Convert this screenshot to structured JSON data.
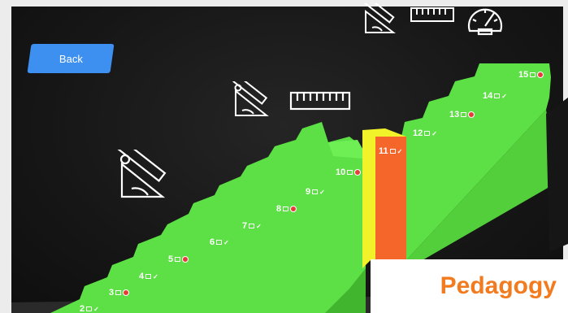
{
  "back_button": {
    "label": "Back",
    "color": "#3d8ff0"
  },
  "banner": {
    "label": "Pedagogy",
    "color": "#f27b1f"
  },
  "colors": {
    "stair_green": "#5de045",
    "current_step_yellow": "#f2f22a",
    "current_step_orange": "#f4662a",
    "incorrect_red": "#e53b3b"
  },
  "floating_icons": [
    "set-square-protractor-icon",
    "ruler-icon",
    "speedometer-icon"
  ],
  "steps": [
    {
      "number": "2",
      "status": "correct"
    },
    {
      "number": "3",
      "status": "incorrect"
    },
    {
      "number": "4",
      "status": "correct"
    },
    {
      "number": "5",
      "status": "incorrect"
    },
    {
      "number": "6",
      "status": "correct"
    },
    {
      "number": "7",
      "status": "correct"
    },
    {
      "number": "8",
      "status": "incorrect"
    },
    {
      "number": "9",
      "status": "correct"
    },
    {
      "number": "10",
      "status": "incorrect"
    },
    {
      "number": "11",
      "status": "correct",
      "current": true
    },
    {
      "number": "12",
      "status": "correct"
    },
    {
      "number": "13",
      "status": "incorrect"
    },
    {
      "number": "14",
      "status": "correct"
    },
    {
      "number": "15",
      "status": "incorrect"
    }
  ]
}
